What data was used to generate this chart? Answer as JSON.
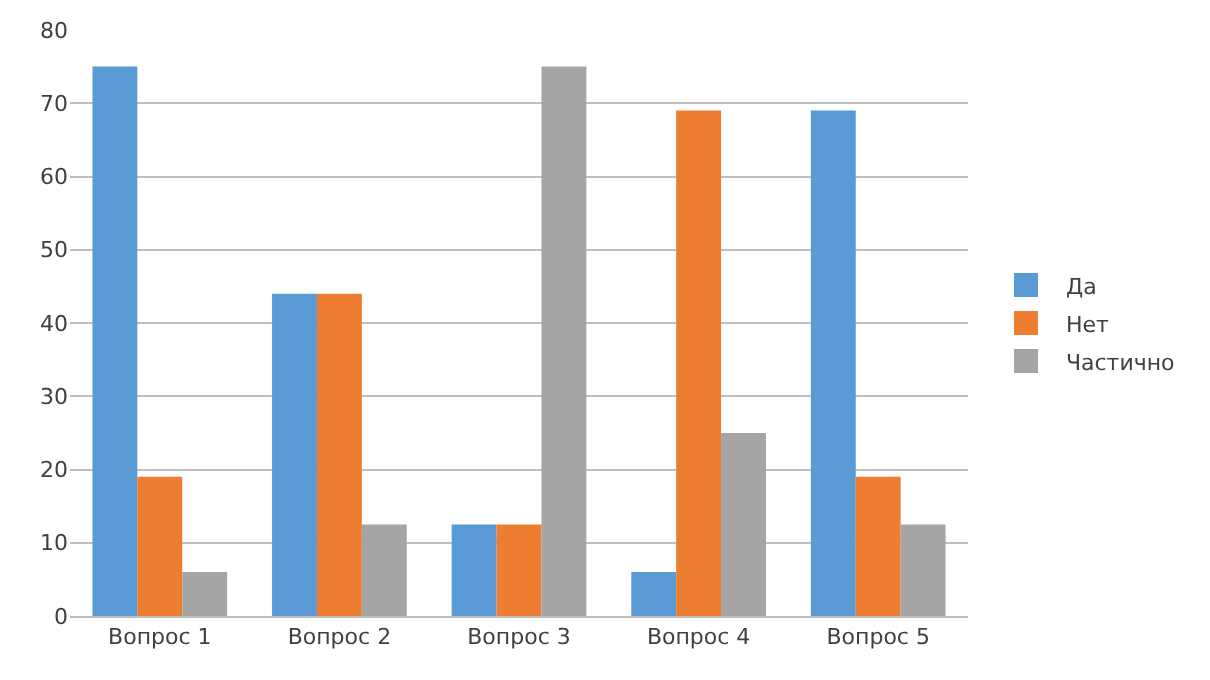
{
  "chart_data": {
    "type": "bar",
    "categories": [
      "Вопрос 1",
      "Вопрос 2",
      "Вопрос 3",
      "Вопрос 4",
      "Вопрос 5"
    ],
    "series": [
      {
        "name": "Да",
        "color": "#5b9bd5",
        "values": [
          75,
          44,
          12.5,
          6,
          69
        ]
      },
      {
        "name": "Нет",
        "color": "#ed7d31",
        "values": [
          19,
          44,
          12.5,
          69,
          19
        ]
      },
      {
        "name": "Частично",
        "color": "#a5a5a5",
        "values": [
          6,
          12.5,
          75,
          25,
          12.5
        ]
      }
    ],
    "ylim": [
      0,
      80
    ],
    "yticks": [
      0,
      10,
      20,
      30,
      40,
      50,
      60,
      70,
      80
    ],
    "grid": "y",
    "legend": "right"
  }
}
